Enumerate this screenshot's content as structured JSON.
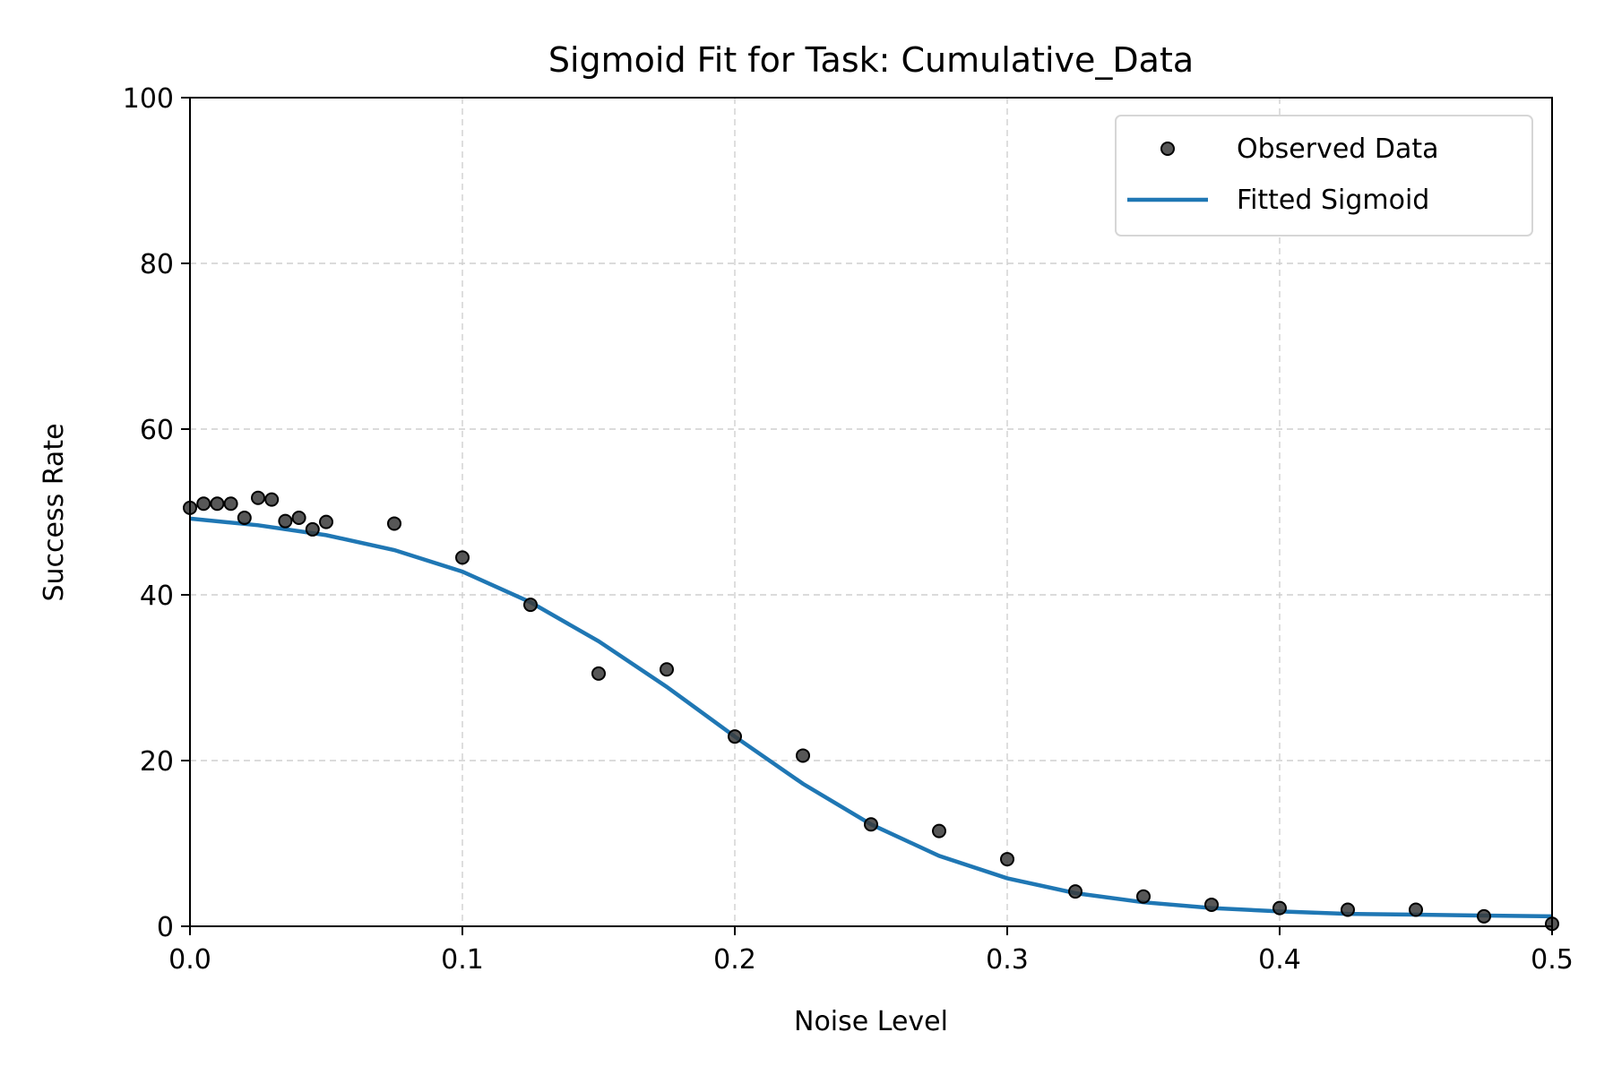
{
  "chart_data": {
    "type": "scatter",
    "title": "Sigmoid Fit for Task: Cumulative_Data",
    "xlabel": "Noise Level",
    "ylabel": "Success Rate",
    "xlim": [
      0.0,
      0.5
    ],
    "ylim": [
      0,
      100
    ],
    "xticks": [
      0.0,
      0.1,
      0.2,
      0.3,
      0.4,
      0.5
    ],
    "xtick_labels": [
      "0.0",
      "0.1",
      "0.2",
      "0.3",
      "0.4",
      "0.5"
    ],
    "yticks": [
      0,
      20,
      40,
      60,
      80,
      100
    ],
    "ytick_labels": [
      "0",
      "20",
      "40",
      "60",
      "80",
      "100"
    ],
    "grid": true,
    "legend_position": "top-right",
    "series": [
      {
        "name": "Observed Data",
        "kind": "scatter",
        "color": "#3a3a3a",
        "x": [
          0.0,
          0.005,
          0.01,
          0.015,
          0.02,
          0.025,
          0.03,
          0.035,
          0.04,
          0.045,
          0.05,
          0.075,
          0.1,
          0.125,
          0.15,
          0.175,
          0.2,
          0.225,
          0.25,
          0.275,
          0.3,
          0.325,
          0.35,
          0.375,
          0.4,
          0.425,
          0.45,
          0.475,
          0.5
        ],
        "y": [
          50.5,
          51.0,
          51.0,
          51.0,
          49.3,
          51.7,
          51.5,
          48.9,
          49.3,
          47.9,
          48.8,
          48.6,
          44.5,
          38.8,
          30.5,
          31.0,
          22.9,
          20.6,
          12.3,
          11.5,
          8.1,
          4.2,
          3.6,
          2.6,
          2.2,
          2.0,
          2.0,
          1.2,
          0.3
        ]
      },
      {
        "name": "Fitted Sigmoid",
        "kind": "line",
        "color": "#1f77b4",
        "x": [
          0.0,
          0.025,
          0.05,
          0.075,
          0.1,
          0.125,
          0.15,
          0.175,
          0.2,
          0.225,
          0.25,
          0.275,
          0.3,
          0.325,
          0.35,
          0.375,
          0.4,
          0.425,
          0.45,
          0.475,
          0.5
        ],
        "y": [
          49.2,
          48.4,
          47.2,
          45.4,
          42.8,
          39.1,
          34.4,
          28.9,
          22.9,
          17.2,
          12.3,
          8.5,
          5.8,
          4.0,
          2.9,
          2.2,
          1.8,
          1.5,
          1.4,
          1.3,
          1.2
        ]
      }
    ]
  }
}
